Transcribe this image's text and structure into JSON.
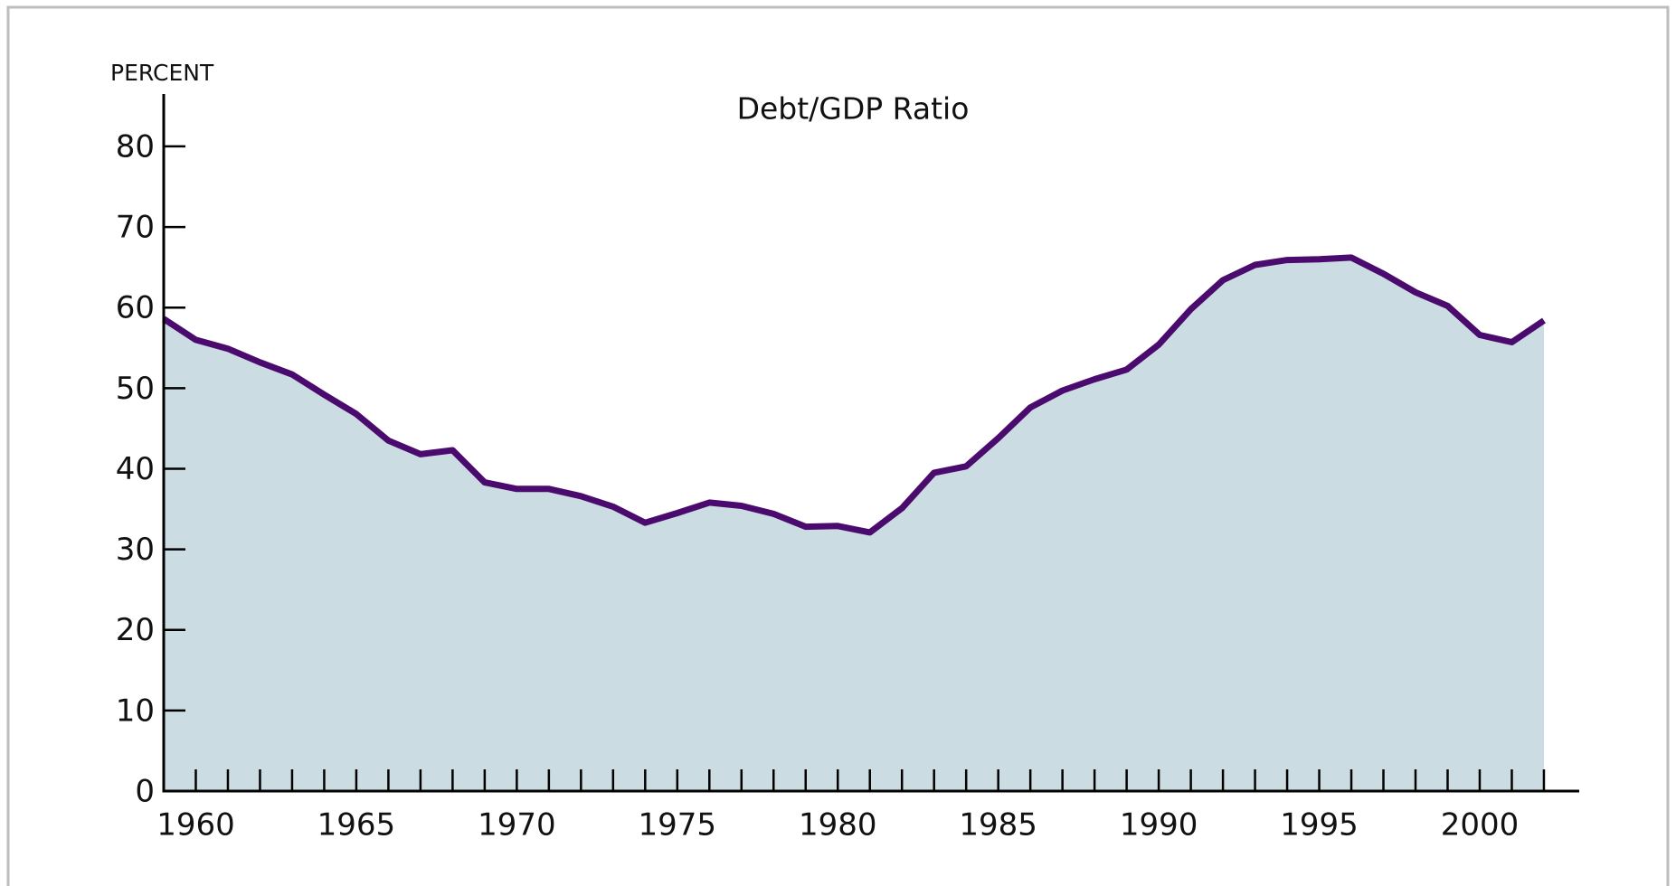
{
  "chart_data": {
    "type": "area",
    "title": "Debt/GDP Ratio",
    "ylabel": "PERCENT",
    "x": [
      1959,
      1960,
      1961,
      1962,
      1963,
      1964,
      1965,
      1966,
      1967,
      1968,
      1969,
      1970,
      1971,
      1972,
      1973,
      1974,
      1975,
      1976,
      1977,
      1978,
      1979,
      1980,
      1981,
      1982,
      1983,
      1984,
      1985,
      1986,
      1987,
      1988,
      1989,
      1990,
      1991,
      1992,
      1993,
      1994,
      1995,
      1996,
      1997,
      1998,
      1999,
      2000,
      2001,
      2002
    ],
    "values": [
      58.6,
      56.0,
      54.9,
      53.2,
      51.7,
      49.2,
      46.8,
      43.5,
      41.8,
      42.3,
      38.3,
      37.5,
      37.5,
      36.6,
      35.3,
      33.3,
      34.5,
      35.8,
      35.4,
      34.4,
      32.8,
      32.9,
      32.1,
      35.1,
      39.5,
      40.3,
      43.8,
      47.6,
      49.7,
      51.1,
      52.3,
      55.4,
      59.8,
      63.4,
      65.3,
      65.9,
      66.0,
      66.2,
      64.2,
      61.9,
      60.2,
      56.6,
      55.7,
      58.4
    ],
    "color": "#4b0a6e",
    "fill_color": "#cbdde2",
    "xlim": [
      1959,
      2003.1
    ],
    "xticks": [
      1960,
      1965,
      1970,
      1975,
      1980,
      1985,
      1990,
      1995,
      2000
    ],
    "ylim": [
      0,
      86.5
    ],
    "yticks": [
      0,
      10,
      20,
      30,
      40,
      50,
      60,
      70,
      80
    ]
  }
}
